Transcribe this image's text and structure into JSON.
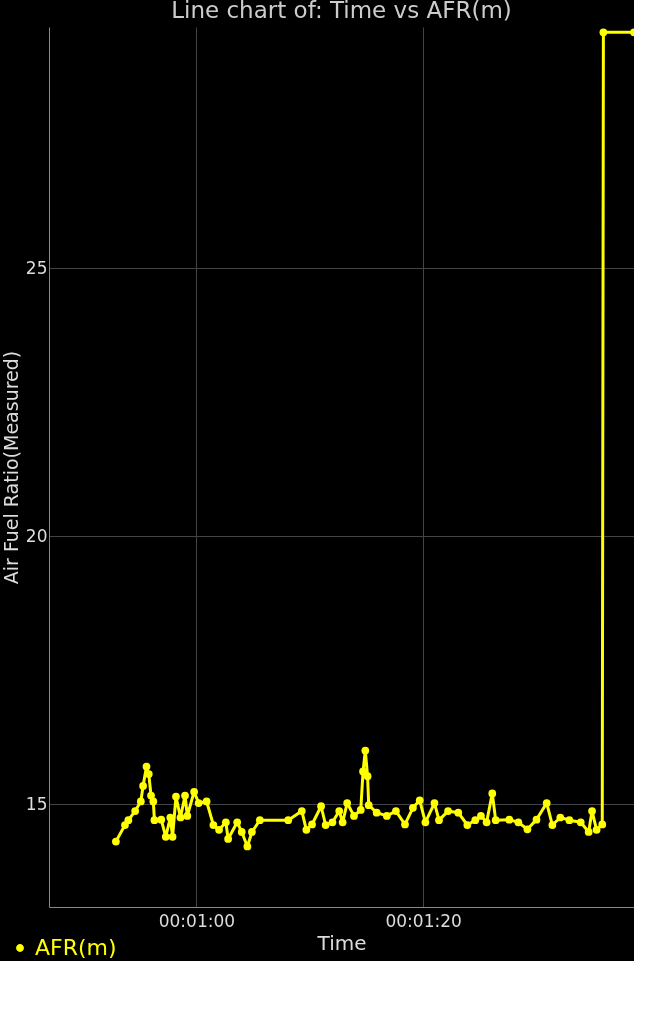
{
  "chart_data": {
    "type": "line",
    "title": "Line chart of: Time vs AFR(m)",
    "xlabel": "Time",
    "ylabel": "Air Fuel Ratio(Measured)",
    "x": [
      52.9,
      53.7,
      54.0,
      54.6,
      55.1,
      55.3,
      55.6,
      55.8,
      56.0,
      56.2,
      56.3,
      56.9,
      57.3,
      57.7,
      57.9,
      58.2,
      58.6,
      59.0,
      59.2,
      59.8,
      60.2,
      60.9,
      61.5,
      62.0,
      62.6,
      62.8,
      63.6,
      64.0,
      64.5,
      64.9,
      65.6,
      68.1,
      69.3,
      69.7,
      70.2,
      71.0,
      71.4,
      72.0,
      72.6,
      72.9,
      73.3,
      73.9,
      74.5,
      74.7,
      74.9,
      75.1,
      75.2,
      75.9,
      76.8,
      77.6,
      78.4,
      79.1,
      79.7,
      80.2,
      81.0,
      81.4,
      82.2,
      83.1,
      83.9,
      84.6,
      85.1,
      85.6,
      86.1,
      86.4,
      87.6,
      88.4,
      89.2,
      90.0,
      90.9,
      91.4,
      92.1,
      92.9,
      93.9,
      94.6,
      94.9,
      95.3,
      95.8,
      95.9,
      98.6
    ],
    "series": [
      {
        "name": "AFR(m)",
        "color": "#ffff00",
        "values": [
          14.3,
          14.61,
          14.7,
          14.87,
          15.05,
          15.34,
          15.7,
          15.56,
          15.16,
          15.05,
          14.7,
          14.71,
          14.39,
          14.75,
          14.39,
          15.14,
          14.75,
          15.16,
          14.78,
          15.23,
          15.02,
          15.05,
          14.61,
          14.52,
          14.66,
          14.35,
          14.66,
          14.48,
          14.21,
          14.48,
          14.7,
          14.7,
          14.87,
          14.52,
          14.62,
          14.96,
          14.61,
          14.66,
          14.87,
          14.66,
          15.02,
          14.78,
          14.89,
          15.61,
          16.0,
          15.52,
          14.98,
          14.84,
          14.78,
          14.87,
          14.62,
          14.93,
          15.07,
          14.66,
          15.02,
          14.7,
          14.87,
          14.84,
          14.61,
          14.7,
          14.78,
          14.66,
          15.2,
          14.7,
          14.71,
          14.66,
          14.53,
          14.71,
          15.02,
          14.61,
          14.75,
          14.7,
          14.66,
          14.48,
          14.87,
          14.52,
          14.62,
          29.4,
          29.4
        ]
      }
    ],
    "xlim": [
      47,
      98.6
    ],
    "ylim": [
      13.08,
      29.5
    ],
    "xticks": [
      {
        "value": 60,
        "label": "00:01:00"
      },
      {
        "value": 80,
        "label": "00:01:20"
      }
    ],
    "yticks": [
      15,
      20,
      25
    ],
    "grid": true,
    "legend": "bottom left",
    "marker": "circle",
    "line_style": "solid"
  }
}
